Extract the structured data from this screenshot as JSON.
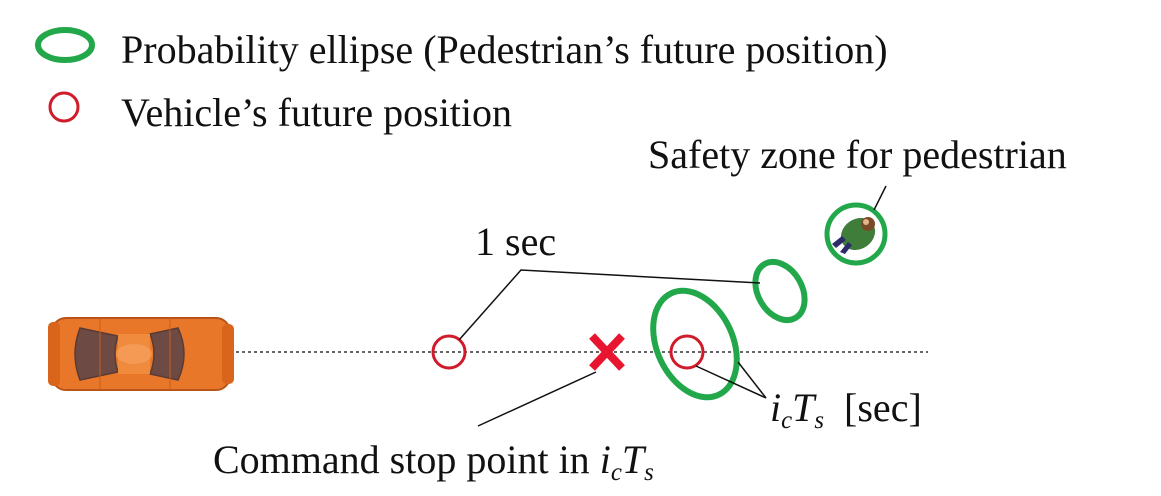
{
  "legend": {
    "ellipse_label": "Probability ellipse (Pedestrian’s future position)",
    "vehicle_label": "Vehicle’s future position"
  },
  "labels": {
    "safety_zone": "Safety zone for pedestrian",
    "one_sec": "1 sec",
    "ict_i": "i",
    "ict_c": "c",
    "ict_T": "T",
    "ict_s": "s",
    "ict_unit": "[sec]",
    "command_stop": "Command stop point in ",
    "command_i": "i",
    "command_c": "c",
    "command_T": "T",
    "command_s": "s"
  },
  "colors": {
    "ellipse": "#22a84a",
    "vehicle_circle": "#d01c2a",
    "stop_cross": "#e8152f",
    "car_body": "#e8772a",
    "path_line": "#333333"
  },
  "icons": {
    "car": "car-top-view-icon",
    "pedestrian": "pedestrian-top-view-icon",
    "stop": "x-cross-icon"
  }
}
